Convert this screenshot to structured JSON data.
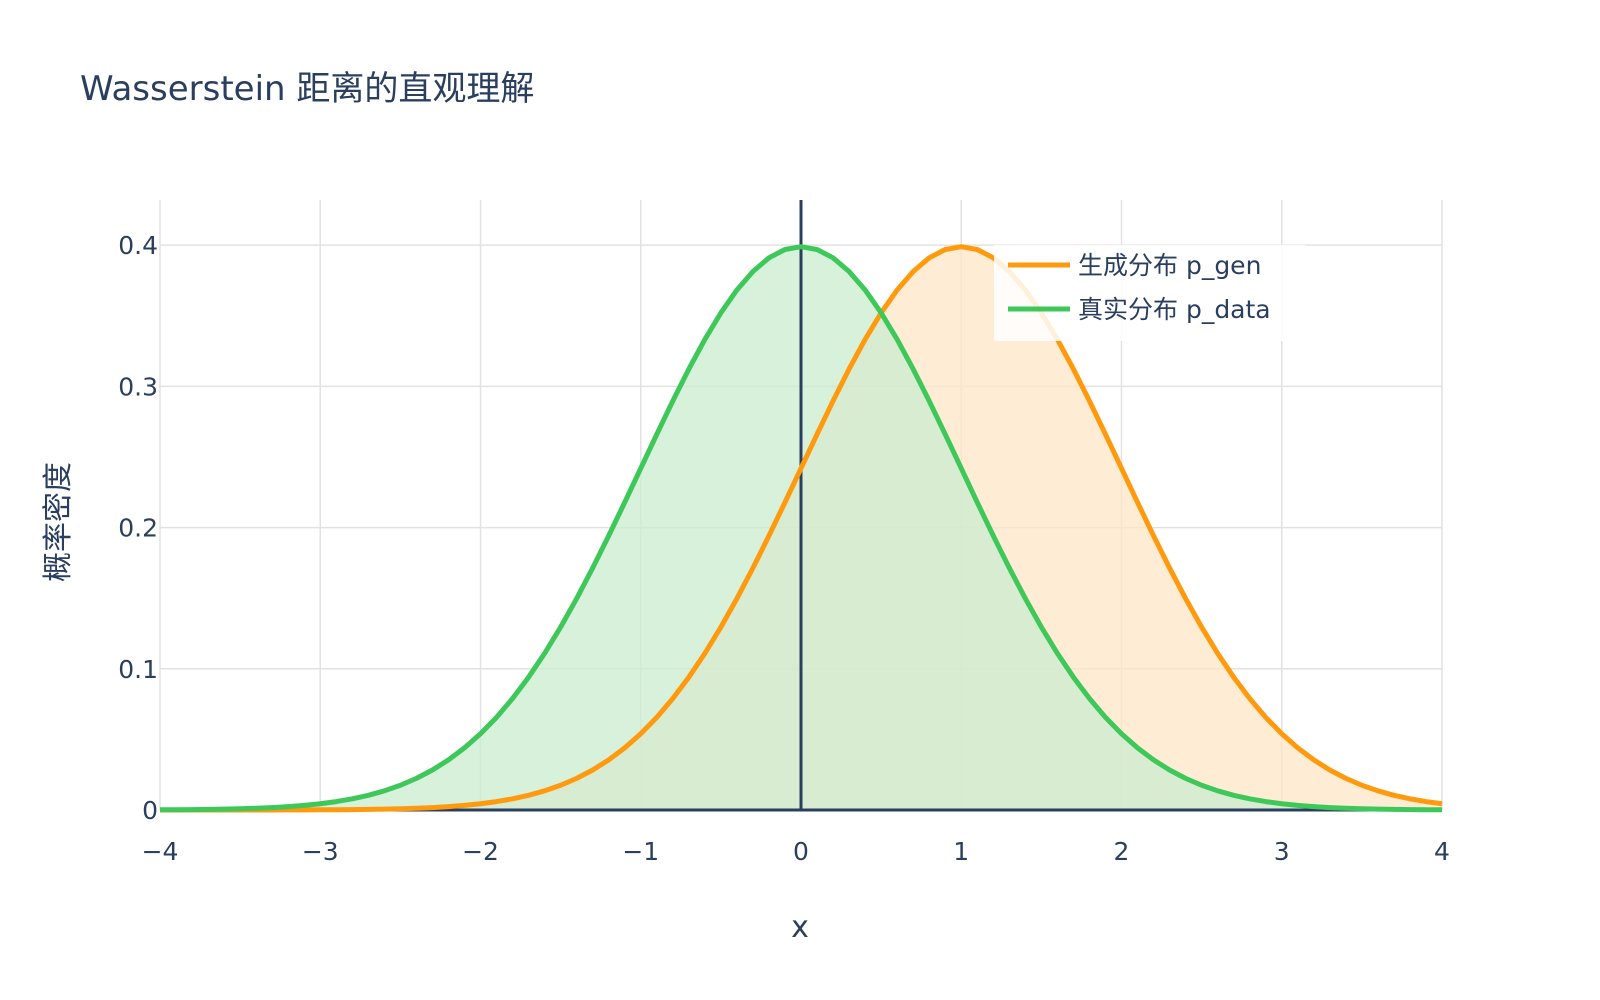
{
  "chart_data": {
    "type": "area",
    "title": "Wasserstein 距离的直观理解",
    "xlabel": "x",
    "ylabel": "概率密度",
    "xlim": [
      -4,
      4
    ],
    "ylim": [
      0,
      0.432
    ],
    "x_ticks": [
      -4,
      -3,
      -2,
      -1,
      0,
      1,
      2,
      3,
      4
    ],
    "x_tick_labels": [
      "−4",
      "−3",
      "−2",
      "−1",
      "0",
      "1",
      "2",
      "3",
      "4"
    ],
    "y_ticks": [
      0,
      0.1,
      0.2,
      0.3,
      0.4
    ],
    "y_tick_labels": [
      "0",
      "0.1",
      "0.2",
      "0.3",
      "0.4"
    ],
    "grid": true,
    "legend_position": "top-right",
    "reference_lines": [
      {
        "axis": "x",
        "value": 0
      },
      {
        "axis": "y",
        "value": 0
      }
    ],
    "series": [
      {
        "name": "生成分布 p_gen",
        "distribution": "normal",
        "mean": 1,
        "std": 1,
        "color": "#ff9a0e",
        "fill_color": "#ffe6c6"
      },
      {
        "name": "真实分布 p_data",
        "distribution": "normal",
        "mean": 0,
        "std": 1,
        "color": "#3ec85a",
        "fill_color": "#c9eccf"
      }
    ]
  },
  "colors": {
    "text": "#2a3f5f",
    "grid": "#e2e2e2",
    "zero_line": "#2a3f5f"
  }
}
